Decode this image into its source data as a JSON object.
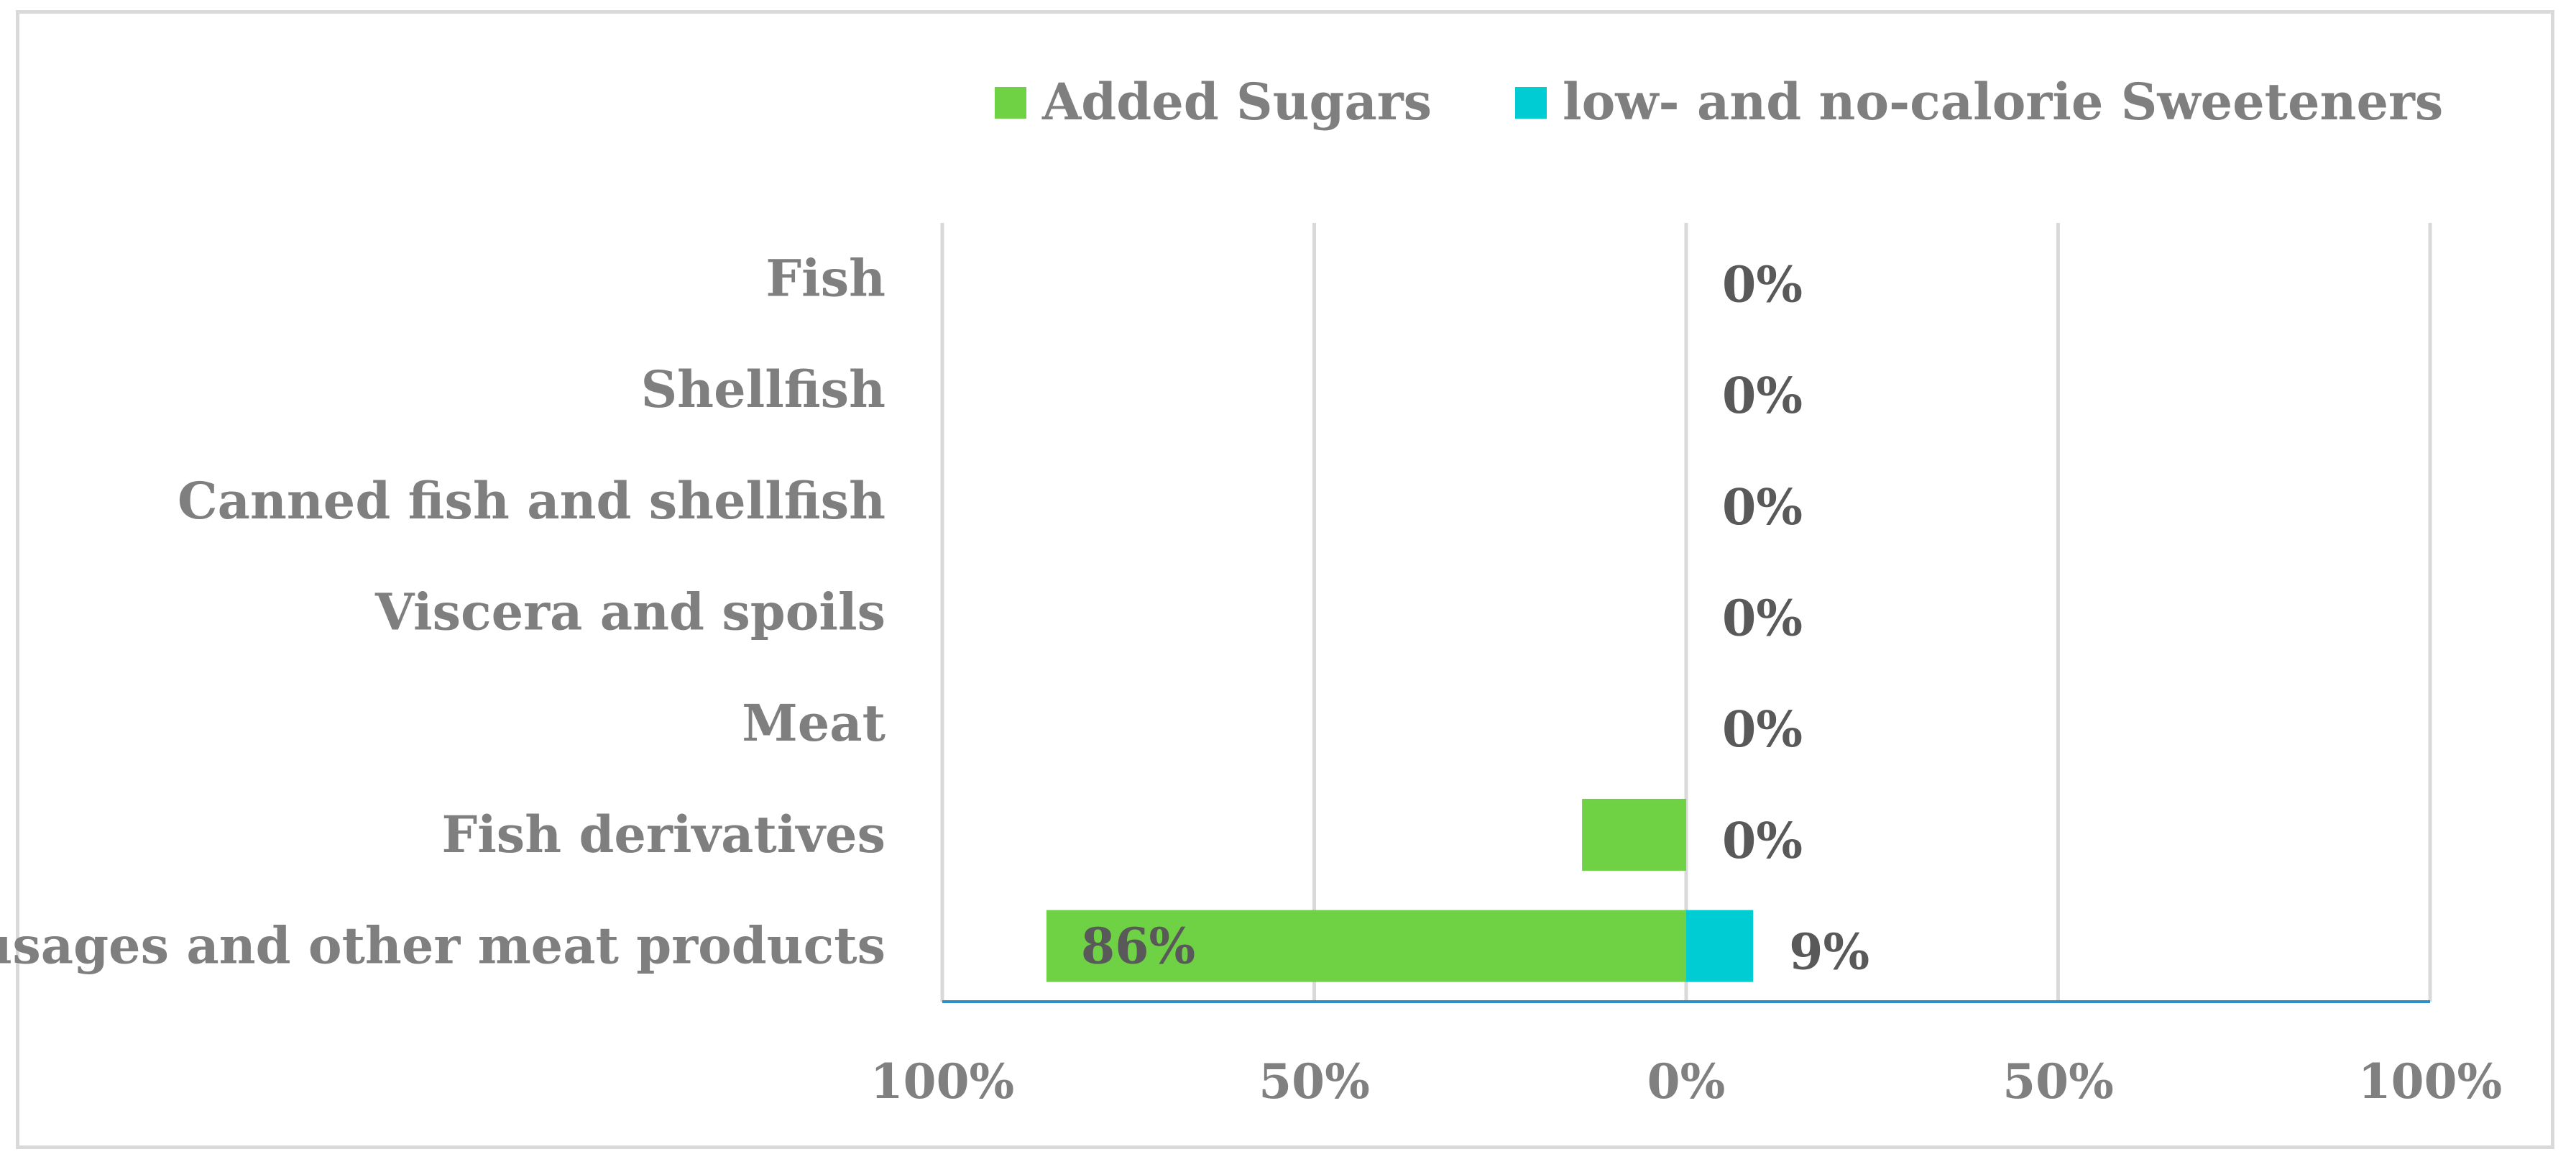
{
  "chart_data": {
    "type": "bar",
    "orientation": "horizontal",
    "stacking": "diverging",
    "categories": [
      "Fish",
      "Shellfish",
      "Canned fish and shellfish",
      "Viscera and spoils",
      "Meat",
      "Fish derivatives",
      "Sausages and other meat products"
    ],
    "series": [
      {
        "name": "Added Sugars",
        "color": "#6fd144",
        "direction": "left",
        "values": [
          0,
          0,
          0,
          0,
          0,
          14,
          86
        ],
        "labels": [
          "",
          "",
          "",
          "",
          "",
          "",
          "86%"
        ]
      },
      {
        "name": "low- and no-calorie Sweeteners",
        "color": "#00ccd3",
        "direction": "right",
        "values": [
          0,
          0,
          0,
          0,
          0,
          0,
          9
        ],
        "labels": [
          "0%",
          "0%",
          "0%",
          "0%",
          "0%",
          "0%",
          "9%"
        ]
      }
    ],
    "xlim": [
      -100,
      100
    ],
    "xticks": [
      -100,
      -50,
      0,
      50,
      100
    ],
    "xtick_labels": [
      "100%",
      "50%",
      "0%",
      "50%",
      "100%"
    ],
    "grid": "vertical",
    "legend_position": "top"
  }
}
